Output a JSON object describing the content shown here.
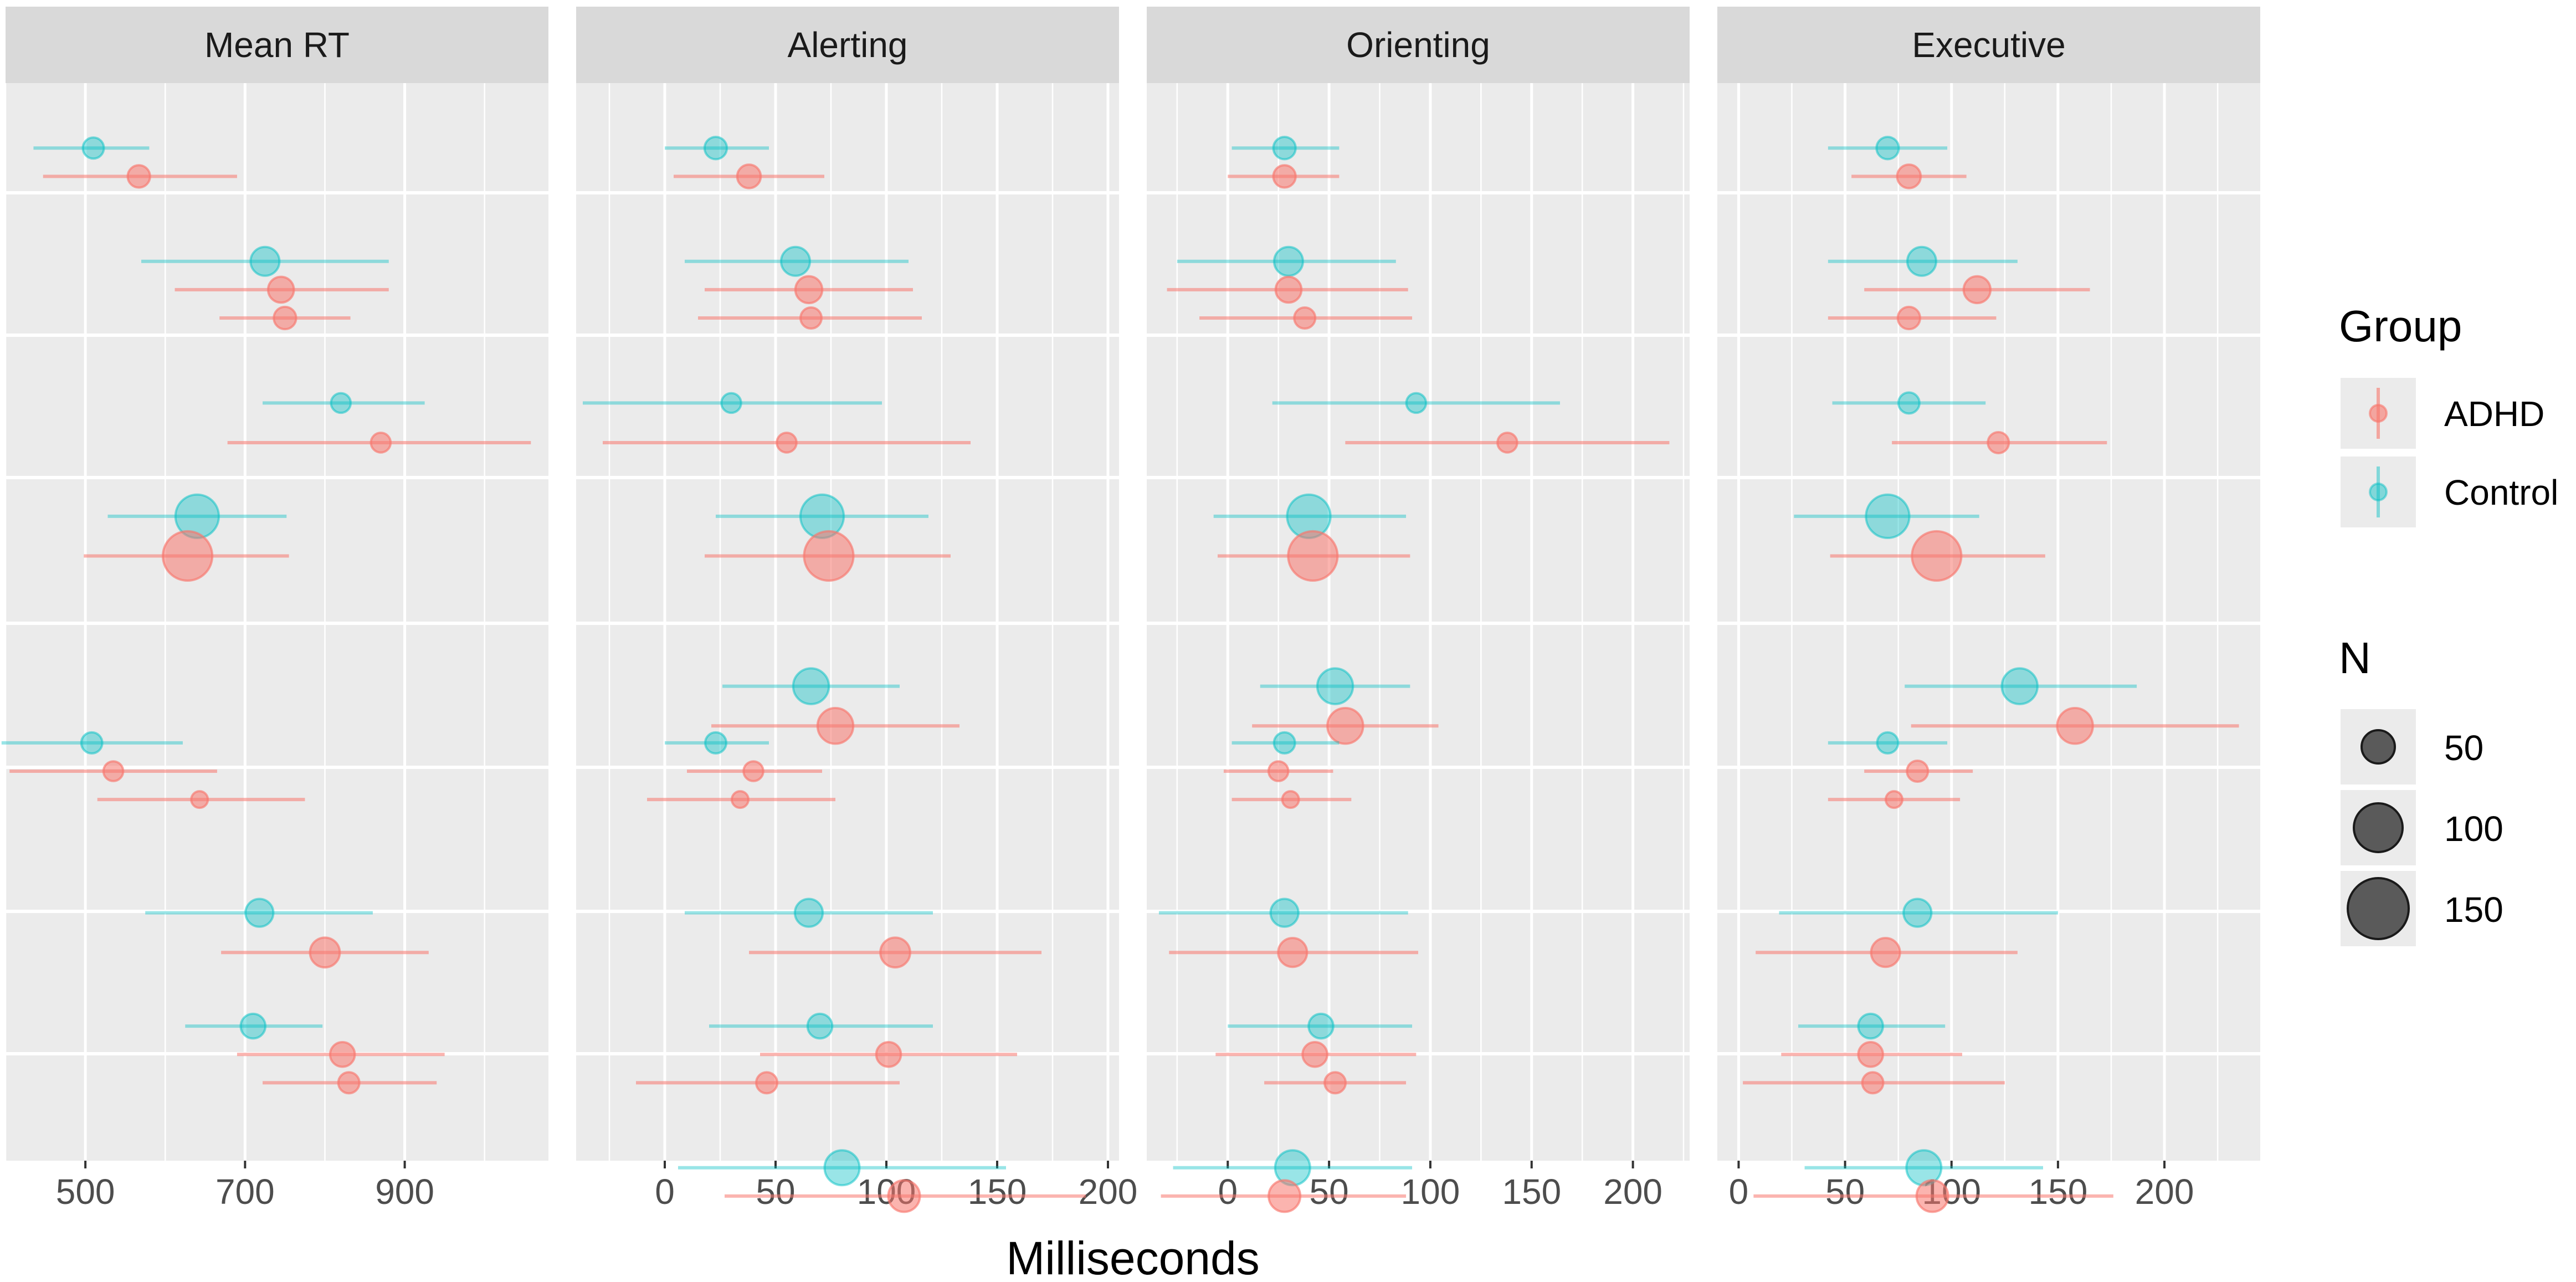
{
  "chart_data": {
    "type": "scatter",
    "subtype": "faceted forest plot (point estimates with error bars)",
    "xlabel": "Milliseconds",
    "colors": {
      "ADHD": "#F8766D",
      "Control": "#00BFC4"
    },
    "legend": {
      "group_title": "Group",
      "groups": [
        "ADHD",
        "Control"
      ],
      "size_title": "N",
      "sizes": [
        "50",
        "100",
        "150"
      ]
    },
    "facets": [
      {
        "title": "Mean RT",
        "xlim": [
          400,
          1080
        ],
        "ticks": [
          "500",
          "700",
          "900"
        ],
        "points": [
          {
            "g": "Control",
            "y": 1,
            "x": 510,
            "lo": 435,
            "hi": 580,
            "n": 40
          },
          {
            "g": "ADHD",
            "y": 1.5,
            "x": 567,
            "lo": 447,
            "hi": 690,
            "n": 45
          },
          {
            "g": "Control",
            "y": 3,
            "x": 725,
            "lo": 570,
            "hi": 880,
            "n": 75
          },
          {
            "g": "ADHD",
            "y": 3.5,
            "x": 745,
            "lo": 612,
            "hi": 880,
            "n": 60
          },
          {
            "g": "ADHD",
            "y": 4,
            "x": 750,
            "lo": 668,
            "hi": 832,
            "n": 45
          },
          {
            "g": "Control",
            "y": 5.5,
            "x": 820,
            "lo": 722,
            "hi": 925,
            "n": 35
          },
          {
            "g": "ADHD",
            "y": 6.2,
            "x": 870,
            "lo": 678,
            "hi": 1058,
            "n": 35
          },
          {
            "g": "Control",
            "y": 7.5,
            "x": 640,
            "lo": 528,
            "hi": 752,
            "n": 170
          },
          {
            "g": "ADHD",
            "y": 8.2,
            "x": 628,
            "lo": 498,
            "hi": 755,
            "n": 220
          },
          {
            "g": "Control",
            "y": 11.5,
            "x": 508,
            "lo": 395,
            "hi": 622,
            "n": 40
          },
          {
            "g": "ADHD",
            "y": 12,
            "x": 535,
            "lo": 405,
            "hi": 665,
            "n": 35
          },
          {
            "g": "ADHD",
            "y": 12.5,
            "x": 643,
            "lo": 515,
            "hi": 775,
            "n": 25
          },
          {
            "g": "Control",
            "y": 14.5,
            "x": 718,
            "lo": 575,
            "hi": 860,
            "n": 70
          },
          {
            "g": "ADHD",
            "y": 15.2,
            "x": 800,
            "lo": 670,
            "hi": 930,
            "n": 80
          },
          {
            "g": "Control",
            "y": 16.5,
            "x": 710,
            "lo": 625,
            "hi": 797,
            "n": 55
          },
          {
            "g": "ADHD",
            "y": 17,
            "x": 822,
            "lo": 690,
            "hi": 950,
            "n": 55
          },
          {
            "g": "ADHD",
            "y": 17.5,
            "x": 830,
            "lo": 722,
            "hi": 940,
            "n": 40
          }
        ]
      },
      {
        "title": "Alerting",
        "xlim": [
          -40,
          205
        ],
        "ticks": [
          "0",
          "50",
          "100",
          "150",
          "200"
        ],
        "points": [
          {
            "g": "Control",
            "y": 1,
            "x": 23,
            "lo": 0,
            "hi": 47,
            "n": 45
          },
          {
            "g": "ADHD",
            "y": 1.5,
            "x": 38,
            "lo": 4,
            "hi": 72,
            "n": 50
          },
          {
            "g": "Control",
            "y": 3,
            "x": 59,
            "lo": 9,
            "hi": 110,
            "n": 75
          },
          {
            "g": "ADHD",
            "y": 3.5,
            "x": 65,
            "lo": 18,
            "hi": 112,
            "n": 65
          },
          {
            "g": "ADHD",
            "y": 4,
            "x": 66,
            "lo": 15,
            "hi": 116,
            "n": 40
          },
          {
            "g": "Control",
            "y": 5.5,
            "x": 30,
            "lo": -37,
            "hi": 98,
            "n": 35
          },
          {
            "g": "ADHD",
            "y": 6.2,
            "x": 55,
            "lo": -28,
            "hi": 138,
            "n": 35
          },
          {
            "g": "Control",
            "y": 7.5,
            "x": 71,
            "lo": 23,
            "hi": 119,
            "n": 170
          },
          {
            "g": "ADHD",
            "y": 8.2,
            "x": 74,
            "lo": 18,
            "hi": 129,
            "n": 220
          },
          {
            "g": "Control",
            "y": 10.5,
            "x": 66,
            "lo": 26,
            "hi": 106,
            "n": 115
          },
          {
            "g": "ADHD",
            "y": 11.2,
            "x": 77,
            "lo": 21,
            "hi": 133,
            "n": 115
          },
          {
            "g": "Control",
            "y": 11.5,
            "x": 23,
            "lo": 0,
            "hi": 47,
            "n": 40
          },
          {
            "g": "ADHD",
            "y": 12,
            "x": 40,
            "lo": 10,
            "hi": 71,
            "n": 35
          },
          {
            "g": "ADHD",
            "y": 12.5,
            "x": 34,
            "lo": -8,
            "hi": 77,
            "n": 25
          },
          {
            "g": "Control",
            "y": 14.5,
            "x": 65,
            "lo": 9,
            "hi": 121,
            "n": 70
          },
          {
            "g": "ADHD",
            "y": 15.2,
            "x": 104,
            "lo": 38,
            "hi": 170,
            "n": 80
          },
          {
            "g": "Control",
            "y": 16.5,
            "x": 70,
            "lo": 20,
            "hi": 121,
            "n": 55
          },
          {
            "g": "ADHD",
            "y": 17,
            "x": 101,
            "lo": 43,
            "hi": 159,
            "n": 55
          },
          {
            "g": "ADHD",
            "y": 17.5,
            "x": 46,
            "lo": -13,
            "hi": 106,
            "n": 40
          },
          {
            "g": "Control",
            "y": 19,
            "x": 80,
            "lo": 6,
            "hi": 154,
            "n": 110
          },
          {
            "g": "ADHD",
            "y": 19.5,
            "x": 108,
            "lo": 27,
            "hi": 190,
            "n": 90
          }
        ]
      },
      {
        "title": "Orienting",
        "xlim": [
          -40,
          228
        ],
        "ticks": [
          "0",
          "50",
          "100",
          "150",
          "200"
        ],
        "points": [
          {
            "g": "Control",
            "y": 1,
            "x": 28,
            "lo": 2,
            "hi": 55,
            "n": 45
          },
          {
            "g": "ADHD",
            "y": 1.5,
            "x": 28,
            "lo": 0,
            "hi": 55,
            "n": 45
          },
          {
            "g": "Control",
            "y": 3,
            "x": 30,
            "lo": -25,
            "hi": 83,
            "n": 75
          },
          {
            "g": "ADHD",
            "y": 3.5,
            "x": 30,
            "lo": -30,
            "hi": 89,
            "n": 60
          },
          {
            "g": "ADHD",
            "y": 4,
            "x": 38,
            "lo": -14,
            "hi": 91,
            "n": 40
          },
          {
            "g": "Control",
            "y": 5.5,
            "x": 93,
            "lo": 22,
            "hi": 164,
            "n": 35
          },
          {
            "g": "ADHD",
            "y": 6.2,
            "x": 138,
            "lo": 58,
            "hi": 218,
            "n": 35
          },
          {
            "g": "Control",
            "y": 7.5,
            "x": 40,
            "lo": -7,
            "hi": 88,
            "n": 170
          },
          {
            "g": "ADHD",
            "y": 8.2,
            "x": 42,
            "lo": -5,
            "hi": 90,
            "n": 220
          },
          {
            "g": "Control",
            "y": 10.5,
            "x": 53,
            "lo": 16,
            "hi": 90,
            "n": 115
          },
          {
            "g": "ADHD",
            "y": 11.2,
            "x": 58,
            "lo": 12,
            "hi": 104,
            "n": 115
          },
          {
            "g": "Control",
            "y": 11.5,
            "x": 28,
            "lo": 2,
            "hi": 55,
            "n": 40
          },
          {
            "g": "ADHD",
            "y": 12,
            "x": 25,
            "lo": -2,
            "hi": 52,
            "n": 35
          },
          {
            "g": "ADHD",
            "y": 12.5,
            "x": 31,
            "lo": 2,
            "hi": 61,
            "n": 25
          },
          {
            "g": "Control",
            "y": 14.5,
            "x": 28,
            "lo": -34,
            "hi": 89,
            "n": 70
          },
          {
            "g": "ADHD",
            "y": 15.2,
            "x": 32,
            "lo": -29,
            "hi": 94,
            "n": 75
          },
          {
            "g": "Control",
            "y": 16.5,
            "x": 46,
            "lo": 0,
            "hi": 91,
            "n": 55
          },
          {
            "g": "ADHD",
            "y": 17,
            "x": 43,
            "lo": -6,
            "hi": 93,
            "n": 55
          },
          {
            "g": "ADHD",
            "y": 17.5,
            "x": 53,
            "lo": 18,
            "hi": 88,
            "n": 40
          },
          {
            "g": "Control",
            "y": 19,
            "x": 32,
            "lo": -27,
            "hi": 91,
            "n": 110
          },
          {
            "g": "ADHD",
            "y": 19.5,
            "x": 28,
            "lo": -33,
            "hi": 88,
            "n": 90
          }
        ]
      },
      {
        "title": "Executive",
        "xlim": [
          -10,
          245
        ],
        "ticks": [
          "0",
          "50",
          "100",
          "150",
          "200"
        ],
        "points": [
          {
            "g": "Control",
            "y": 1,
            "x": 70,
            "lo": 42,
            "hi": 98,
            "n": 45
          },
          {
            "g": "ADHD",
            "y": 1.5,
            "x": 80,
            "lo": 53,
            "hi": 107,
            "n": 50
          },
          {
            "g": "Control",
            "y": 3,
            "x": 86,
            "lo": 42,
            "hi": 131,
            "n": 75
          },
          {
            "g": "ADHD",
            "y": 3.5,
            "x": 112,
            "lo": 59,
            "hi": 165,
            "n": 65
          },
          {
            "g": "ADHD",
            "y": 4,
            "x": 80,
            "lo": 42,
            "hi": 121,
            "n": 45
          },
          {
            "g": "Control",
            "y": 5.5,
            "x": 80,
            "lo": 44,
            "hi": 116,
            "n": 40
          },
          {
            "g": "ADHD",
            "y": 6.2,
            "x": 122,
            "lo": 72,
            "hi": 173,
            "n": 40
          },
          {
            "g": "Control",
            "y": 7.5,
            "x": 70,
            "lo": 26,
            "hi": 113,
            "n": 170
          },
          {
            "g": "ADHD",
            "y": 8.2,
            "x": 93,
            "lo": 43,
            "hi": 144,
            "n": 220
          },
          {
            "g": "Control",
            "y": 10.5,
            "x": 132,
            "lo": 78,
            "hi": 187,
            "n": 115
          },
          {
            "g": "ADHD",
            "y": 11.2,
            "x": 158,
            "lo": 81,
            "hi": 235,
            "n": 115
          },
          {
            "g": "Control",
            "y": 11.5,
            "x": 70,
            "lo": 42,
            "hi": 98,
            "n": 40
          },
          {
            "g": "ADHD",
            "y": 12,
            "x": 84,
            "lo": 59,
            "hi": 110,
            "n": 40
          },
          {
            "g": "ADHD",
            "y": 12.5,
            "x": 73,
            "lo": 42,
            "hi": 104,
            "n": 25
          },
          {
            "g": "Control",
            "y": 14.5,
            "x": 84,
            "lo": 19,
            "hi": 150,
            "n": 70
          },
          {
            "g": "ADHD",
            "y": 15.2,
            "x": 69,
            "lo": 8,
            "hi": 131,
            "n": 75
          },
          {
            "g": "Control",
            "y": 16.5,
            "x": 62,
            "lo": 28,
            "hi": 97,
            "n": 55
          },
          {
            "g": "ADHD",
            "y": 17,
            "x": 62,
            "lo": 20,
            "hi": 105,
            "n": 55
          },
          {
            "g": "ADHD",
            "y": 17.5,
            "x": 63,
            "lo": 2,
            "hi": 125,
            "n": 40
          },
          {
            "g": "Control",
            "y": 19,
            "x": 87,
            "lo": 31,
            "hi": 143,
            "n": 110
          },
          {
            "g": "ADHD",
            "y": 19.5,
            "x": 91,
            "lo": 7,
            "hi": 176,
            "n": 90
          }
        ]
      }
    ]
  }
}
